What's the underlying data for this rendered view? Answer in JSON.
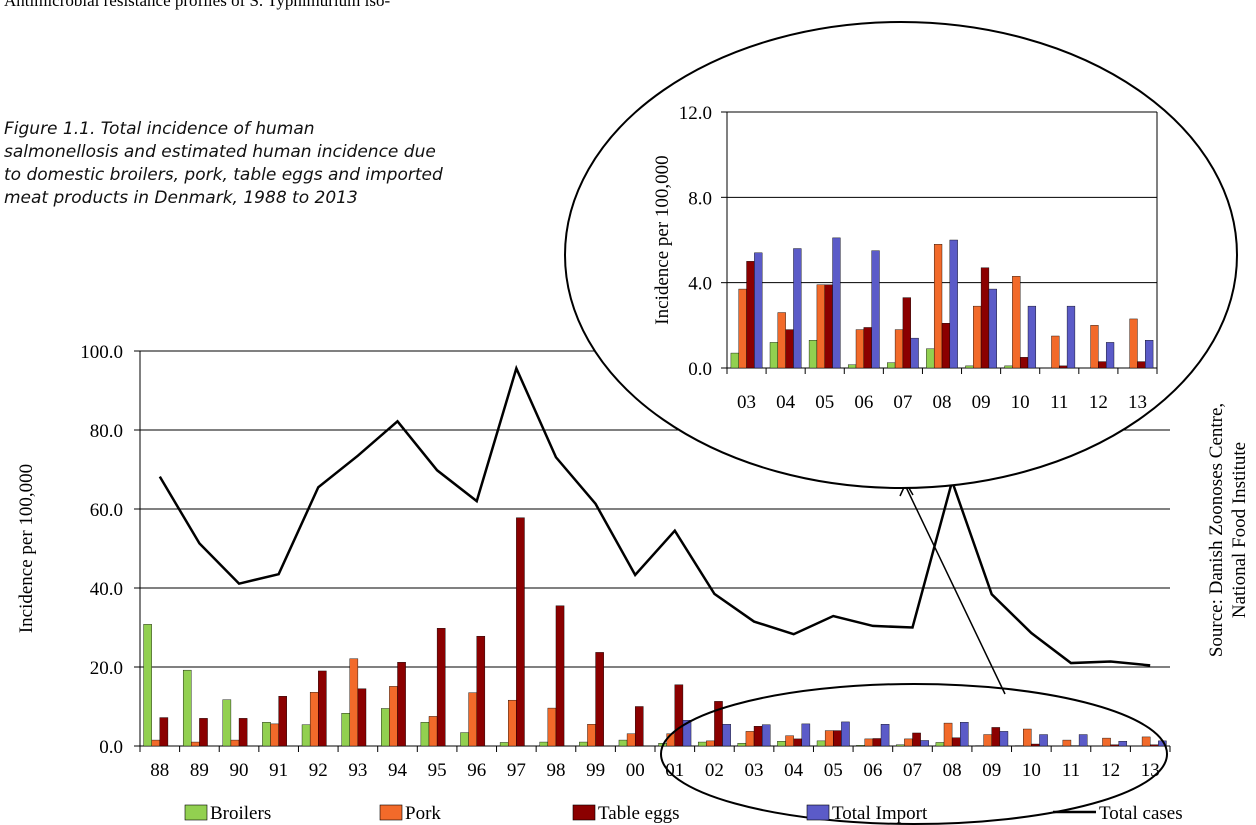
{
  "header": {
    "text": "Antimicrobial resistance profiles of S. Typhimurium iso-"
  },
  "caption": {
    "lines": [
      "Figure 1.1. Total incidence of human",
      "salmonellosis and estimated human incidence due",
      "to domestic broilers, pork, table eggs and imported",
      "meat products in Denmark, 1988 to 2013"
    ]
  },
  "source": {
    "lines": [
      "Source: Danish Zoonoses Centre,",
      "National Food Institute"
    ]
  },
  "colors": {
    "broilers": "#92d050",
    "pork": "#f26a2a",
    "eggs": "#8b0000",
    "import": "#5b5bc8",
    "total": "#000000"
  },
  "chart_data": [
    {
      "type": "bar",
      "title": "",
      "xlabel": "",
      "ylabel": "Incidence per 100,000",
      "ylim": [
        0,
        100
      ],
      "yticks": [
        "0.0",
        "20.0",
        "40.0",
        "60.0",
        "80.0",
        "100.0"
      ],
      "grid": true,
      "legend": "bottom",
      "categories": [
        "88",
        "89",
        "90",
        "91",
        "92",
        "93",
        "94",
        "95",
        "96",
        "97",
        "98",
        "99",
        "00",
        "01",
        "02",
        "03",
        "04",
        "05",
        "06",
        "07",
        "08",
        "09",
        "10",
        "11",
        "12",
        "13"
      ],
      "series": [
        {
          "name": "Broilers",
          "kind": "bar",
          "values": [
            30.8,
            19.2,
            11.7,
            6.0,
            5.4,
            8.3,
            9.5,
            6.0,
            3.4,
            0.9,
            1.0,
            1.0,
            1.5,
            0.7,
            1.0,
            0.7,
            1.2,
            1.3,
            0.2,
            0.3,
            0.9,
            0.1,
            0.1,
            0.0,
            0.0,
            0.0
          ]
        },
        {
          "name": "Pork",
          "kind": "bar",
          "values": [
            1.5,
            1.0,
            1.5,
            5.6,
            13.6,
            22.1,
            15.1,
            7.5,
            13.5,
            11.6,
            9.6,
            5.5,
            3.1,
            3.1,
            1.3,
            3.7,
            2.6,
            3.9,
            1.8,
            1.8,
            5.8,
            2.9,
            4.3,
            1.5,
            2.0,
            2.3
          ]
        },
        {
          "name": "Table eggs",
          "kind": "bar",
          "values": [
            7.2,
            7.0,
            7.0,
            12.6,
            19.0,
            14.5,
            21.2,
            29.8,
            27.8,
            57.8,
            35.5,
            23.7,
            10.0,
            15.5,
            11.3,
            5.0,
            1.8,
            3.9,
            1.9,
            3.3,
            2.1,
            4.7,
            0.5,
            0.1,
            0.3,
            0.3
          ]
        },
        {
          "name": "Total Import",
          "kind": "bar",
          "values": [
            0,
            0,
            0,
            0,
            0,
            0,
            0,
            0,
            0,
            0,
            0,
            0,
            0,
            6.5,
            5.5,
            5.4,
            5.6,
            6.1,
            5.5,
            1.4,
            6.0,
            3.7,
            2.9,
            2.9,
            1.2,
            1.3
          ]
        },
        {
          "name": "Total cases",
          "kind": "line",
          "values": [
            68.2,
            51.3,
            41.1,
            43.5,
            65.5,
            73.5,
            82.2,
            69.8,
            62.0,
            95.6,
            73.1,
            61.3,
            43.3,
            54.5,
            38.5,
            31.5,
            28.3,
            32.9,
            30.4,
            30.0,
            67.0,
            38.4,
            28.6,
            21.0,
            21.4,
            20.4
          ]
        }
      ]
    },
    {
      "type": "bar",
      "title": "",
      "xlabel": "",
      "ylabel": "Incidence per 100,000",
      "ylim": [
        0,
        12
      ],
      "yticks": [
        "0.0",
        "4.0",
        "8.0",
        "12.0"
      ],
      "grid": true,
      "categories": [
        "03",
        "04",
        "05",
        "06",
        "07",
        "08",
        "09",
        "10",
        "11",
        "12",
        "13"
      ],
      "series": [
        {
          "name": "Broilers",
          "values": [
            0.7,
            1.2,
            1.3,
            0.15,
            0.25,
            0.9,
            0.1,
            0.1,
            0.0,
            0.0,
            0.0
          ]
        },
        {
          "name": "Pork",
          "values": [
            3.7,
            2.6,
            3.9,
            1.8,
            1.8,
            5.8,
            2.9,
            4.3,
            1.5,
            2.0,
            2.3
          ]
        },
        {
          "name": "Table eggs",
          "values": [
            5.0,
            1.8,
            3.9,
            1.9,
            3.3,
            2.1,
            4.7,
            0.5,
            0.1,
            0.3,
            0.3
          ]
        },
        {
          "name": "Total Import",
          "values": [
            5.4,
            5.6,
            6.1,
            5.5,
            1.4,
            6.0,
            3.7,
            2.9,
            2.9,
            1.2,
            1.3
          ]
        }
      ]
    }
  ]
}
